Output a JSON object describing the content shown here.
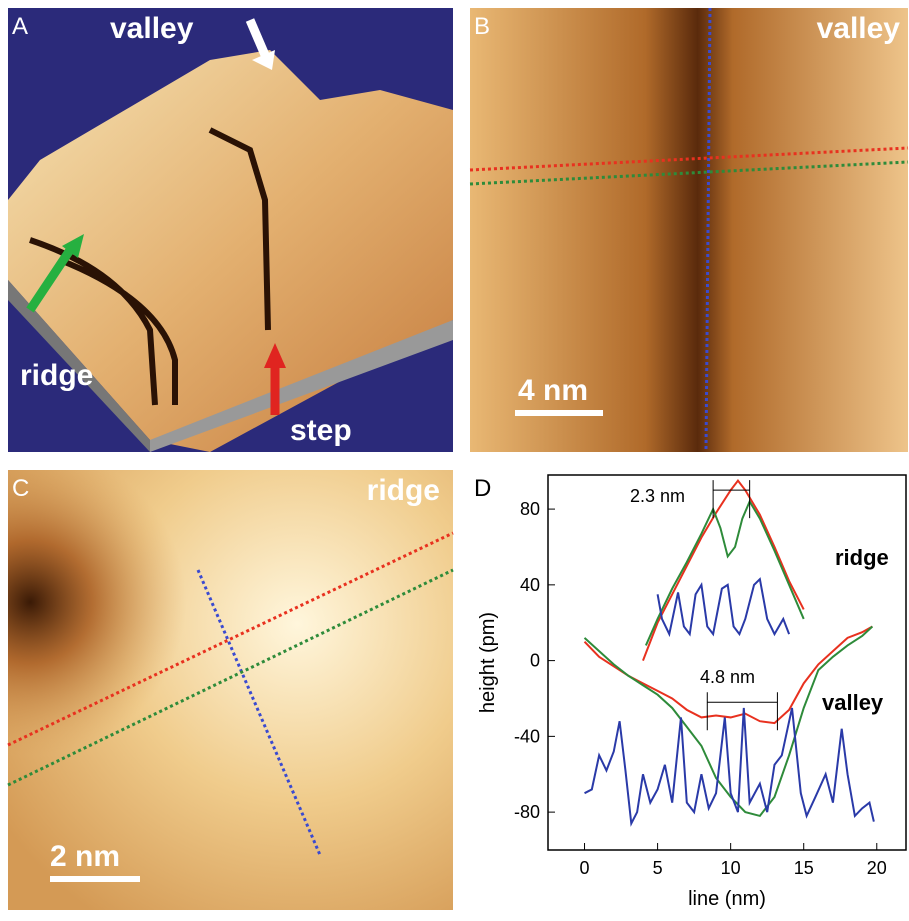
{
  "panels": {
    "a": {
      "label": "A",
      "texts": [
        "valley",
        "ridge",
        "step"
      ]
    },
    "b": {
      "label": "B",
      "texts": [
        "valley"
      ],
      "scale_bar": "4 nm"
    },
    "c": {
      "label": "C",
      "texts": [
        "ridge"
      ],
      "scale_bar": "2 nm"
    }
  },
  "chart_data": {
    "type": "line",
    "panel_label": "D",
    "x_label": "line (nm)",
    "y_label": "height (pm)",
    "xlim": [
      -2.5,
      22
    ],
    "ylim": [
      -100,
      98
    ],
    "xticks": [
      0,
      5,
      10,
      15,
      20
    ],
    "yticks": [
      -80,
      -40,
      0,
      40,
      80
    ],
    "annotations": [
      "2.3 nm",
      "ridge",
      "4.8 nm",
      "valley"
    ],
    "series": [
      {
        "color": "#e8311f",
        "x": [
          4,
          5,
          6,
          7,
          8,
          9,
          10,
          10.5,
          11,
          12,
          13,
          14,
          15
        ],
        "values": [
          0,
          20,
          35,
          50,
          65,
          78,
          90,
          95,
          90,
          77,
          60,
          42,
          27
        ]
      },
      {
        "color": "#2e8b3a",
        "x": [
          4.2,
          5,
          6,
          7,
          8,
          8.8,
          9.3,
          9.8,
          10.3,
          10.8,
          11.3,
          12,
          13,
          14,
          15
        ],
        "values": [
          8,
          22,
          38,
          52,
          67,
          80,
          70,
          55,
          60,
          75,
          84,
          75,
          58,
          40,
          22
        ]
      },
      {
        "color": "#2a3aa8",
        "x": [
          5,
          5.3,
          5.8,
          6.4,
          6.8,
          7.2,
          7.6,
          8,
          8.4,
          8.8,
          9.4,
          9.8,
          10.2,
          10.6,
          11,
          11.6,
          12,
          12.5,
          13,
          13.6,
          14
        ],
        "values": [
          35,
          22,
          14,
          36,
          18,
          14,
          35,
          40,
          18,
          14,
          38,
          40,
          18,
          14,
          22,
          40,
          43,
          22,
          14,
          22,
          14
        ]
      },
      {
        "color": "#e8311f",
        "x": [
          0,
          1,
          2,
          3,
          4,
          5,
          6,
          7,
          8,
          9,
          10,
          11,
          12,
          13,
          14,
          15,
          16,
          17,
          18,
          19,
          19.7
        ],
        "values": [
          10,
          2,
          -3,
          -8,
          -12,
          -16,
          -20,
          -26,
          -30,
          -29,
          -30,
          -28,
          -32,
          -33,
          -26,
          -12,
          -2,
          5,
          12,
          15,
          18
        ]
      },
      {
        "color": "#2e8b3a",
        "x": [
          0,
          1,
          2,
          3,
          4,
          5,
          6,
          7,
          8,
          9,
          10,
          11,
          12,
          13,
          14,
          15,
          16,
          17,
          18,
          19,
          19.7
        ],
        "values": [
          12,
          5,
          -2,
          -8,
          -13,
          -18,
          -25,
          -35,
          -45,
          -62,
          -72,
          -80,
          -82,
          -72,
          -50,
          -25,
          -5,
          2,
          8,
          13,
          18
        ]
      },
      {
        "color": "#2a3aa8",
        "x": [
          0,
          0.5,
          1,
          1.5,
          2,
          2.4,
          2.8,
          3.2,
          3.6,
          4,
          4.5,
          5,
          5.5,
          6,
          6.6,
          7,
          7.5,
          8,
          8.5,
          9,
          9.6,
          10,
          10.5,
          10.9,
          11.3,
          12,
          12.5,
          13,
          13.5,
          14.2,
          14.8,
          15.2,
          15.8,
          16.5,
          17,
          17.6,
          18,
          18.5,
          19,
          19.5,
          19.8
        ],
        "values": [
          -70,
          -68,
          -50,
          -58,
          -48,
          -32,
          -58,
          -86,
          -80,
          -60,
          -75,
          -68,
          -55,
          -75,
          -30,
          -75,
          -80,
          -60,
          -78,
          -70,
          -30,
          -70,
          -80,
          -25,
          -75,
          -65,
          -80,
          -55,
          -50,
          -25,
          -70,
          -82,
          -72,
          -60,
          -75,
          -36,
          -60,
          -82,
          -78,
          -75,
          -85
        ]
      }
    ]
  }
}
